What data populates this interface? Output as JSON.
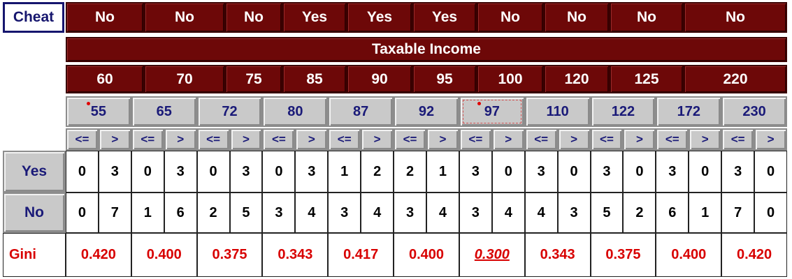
{
  "cheat_row": {
    "label": "Cheat",
    "values": [
      "No",
      "No",
      "No",
      "Yes",
      "Yes",
      "Yes",
      "No",
      "No",
      "No",
      "No"
    ]
  },
  "income_header": {
    "label": "Taxable Income"
  },
  "income_values": [
    "60",
    "70",
    "75",
    "85",
    "90",
    "95",
    "100",
    "120",
    "125",
    "220"
  ],
  "split_positions": [
    "55",
    "65",
    "72",
    "80",
    "87",
    "92",
    "97",
    "110",
    "122",
    "172",
    "230"
  ],
  "comparators": {
    "le": "<=",
    "gt": ">"
  },
  "rows": {
    "yes": {
      "label": "Yes",
      "values": [
        [
          "0",
          "3"
        ],
        [
          "0",
          "3"
        ],
        [
          "0",
          "3"
        ],
        [
          "0",
          "3"
        ],
        [
          "1",
          "2"
        ],
        [
          "2",
          "1"
        ],
        [
          "3",
          "0"
        ],
        [
          "3",
          "0"
        ],
        [
          "3",
          "0"
        ],
        [
          "3",
          "0"
        ],
        [
          "3",
          "0"
        ]
      ]
    },
    "no": {
      "label": "No",
      "values": [
        [
          "0",
          "7"
        ],
        [
          "1",
          "6"
        ],
        [
          "2",
          "5"
        ],
        [
          "3",
          "4"
        ],
        [
          "3",
          "4"
        ],
        [
          "3",
          "4"
        ],
        [
          "3",
          "4"
        ],
        [
          "4",
          "3"
        ],
        [
          "5",
          "2"
        ],
        [
          "6",
          "1"
        ],
        [
          "7",
          "0"
        ]
      ]
    }
  },
  "gini_row": {
    "label": "Gini",
    "values": [
      "0.420",
      "0.400",
      "0.375",
      "0.343",
      "0.417",
      "0.400",
      "0.300",
      "0.343",
      "0.375",
      "0.400",
      "0.420"
    ],
    "best_index": 6
  },
  "colors": {
    "maroon": "#6d0808",
    "gray": "#c9c9c9",
    "navy": "#1a1a78",
    "gini_red": "#d80000"
  }
}
